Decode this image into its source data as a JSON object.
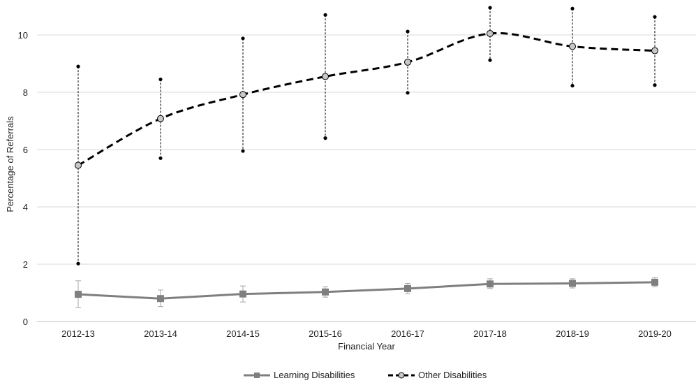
{
  "chart_data": {
    "type": "line",
    "title": "",
    "xlabel": "Financial Year",
    "ylabel": "Percentage of Referrals",
    "ylim": [
      0,
      11
    ],
    "yticks": [
      0,
      2,
      4,
      6,
      8,
      10
    ],
    "grid": true,
    "legend_position": "bottom",
    "categories": [
      "2012-13",
      "2013-14",
      "2014-15",
      "2015-16",
      "2016-17",
      "2017-18",
      "2018-19",
      "2019-20"
    ],
    "series": [
      {
        "name": "Learning Disabilities",
        "color": "#7f7f7f",
        "line_style": "solid",
        "marker": "square",
        "values": [
          0.95,
          0.8,
          0.96,
          1.03,
          1.15,
          1.31,
          1.33,
          1.37
        ],
        "error_low": [
          0.48,
          0.52,
          0.68,
          0.85,
          0.97,
          1.15,
          1.17,
          1.21
        ],
        "error_high": [
          1.42,
          1.1,
          1.24,
          1.21,
          1.33,
          1.49,
          1.49,
          1.53
        ]
      },
      {
        "name": "Other Disabilities",
        "color": "#000000",
        "line_style": "dashed",
        "marker": "circle",
        "values": [
          5.45,
          7.08,
          7.92,
          8.55,
          9.05,
          10.05,
          9.6,
          9.45
        ],
        "error_low": [
          2.02,
          5.7,
          5.95,
          6.4,
          7.98,
          9.12,
          8.23,
          8.25
        ],
        "error_high": [
          8.9,
          8.45,
          9.88,
          10.7,
          10.12,
          10.95,
          10.92,
          10.63
        ]
      }
    ]
  }
}
